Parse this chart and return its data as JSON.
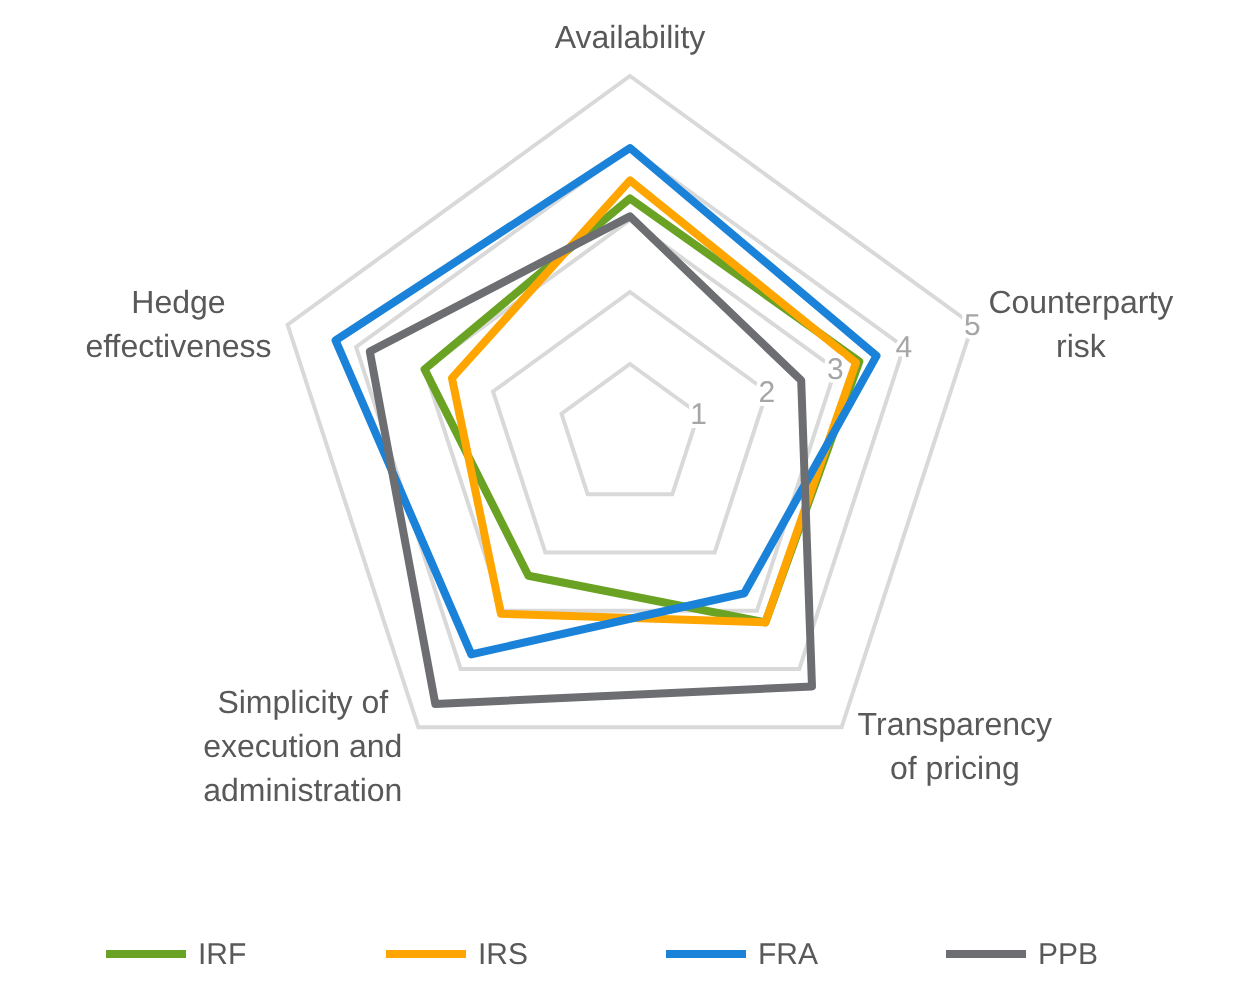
{
  "chart_data": {
    "type": "radar",
    "categories": [
      "Availability",
      "Counterparty risk",
      "Transparency of pricing",
      "Simplicity of execution and administration",
      "Hedge effectiveness"
    ],
    "ylim": [
      0,
      5
    ],
    "yticks": [
      1,
      2,
      3,
      4,
      5
    ],
    "legend": "bottom",
    "marker": "none",
    "series": [
      {
        "name": "IRF",
        "color": "#6aa324",
        "values": [
          3.3,
          3.35,
          3.2,
          2.4,
          3.0
        ]
      },
      {
        "name": "IRS",
        "color": "#ffa500",
        "values": [
          3.55,
          3.3,
          3.2,
          3.05,
          2.6
        ]
      },
      {
        "name": "FRA",
        "color": "#1a82d8",
        "values": [
          4.0,
          3.6,
          2.7,
          3.75,
          4.3
        ]
      },
      {
        "name": "PPB",
        "color": "#6d6e71",
        "values": [
          3.05,
          2.5,
          4.3,
          4.6,
          3.8
        ]
      }
    ]
  }
}
